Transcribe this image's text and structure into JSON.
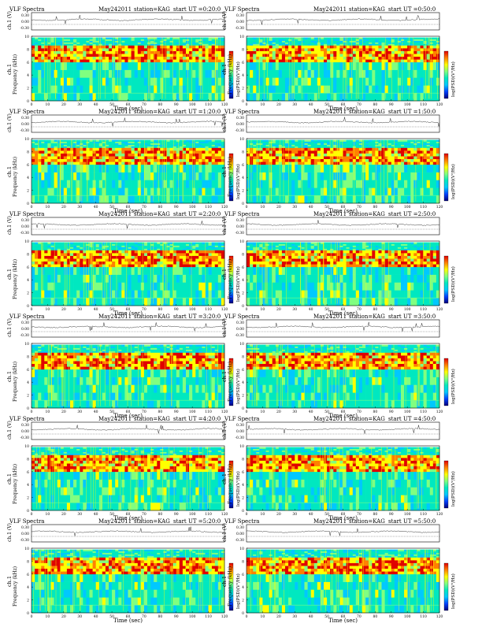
{
  "chart_data": {
    "type": "heatmap",
    "chart_kind": "VLF spectrogram grid (6 rows x 2 columns), each panel with a ch.1 waveform strip on top",
    "title_left": "VLF Spectra",
    "date": "May242011",
    "station": "station=KAG",
    "start_prefix": "start  UT =",
    "waveform_ylabel": "ch.1 (V)",
    "waveform_ticks": [
      "0.30",
      "0.00",
      "-0.30"
    ],
    "ylabel_left": "ch.1",
    "ylabel": "Frequency  (kHz)",
    "ylim_khz": [
      0,
      10
    ],
    "yticks": [
      "0",
      "2",
      "4",
      "6",
      "8",
      "10"
    ],
    "xlabel": "Time  (sec)",
    "xlim_sec": [
      0,
      120
    ],
    "xticks": [
      "0",
      "10",
      "20",
      "30",
      "40",
      "50",
      "60",
      "70",
      "80",
      "90",
      "100",
      "110",
      "120"
    ],
    "colorbar_label": "log(PSD)(V²/Hz)",
    "colormap": [
      "#00007a",
      "#0040ff",
      "#00c8ff",
      "#00e8c0",
      "#80ff80",
      "#ffff00",
      "#ff8000",
      "#e00000"
    ],
    "panels": [
      {
        "start": "0:20:0",
        "col": 0
      },
      {
        "start": "0:50:0",
        "col": 1
      },
      {
        "start": "1:20:0",
        "col": 0
      },
      {
        "start": "1:50:0",
        "col": 1
      },
      {
        "start": "2:20:0",
        "col": 0
      },
      {
        "start": "2:50:0",
        "col": 1
      },
      {
        "start": "3:20:0",
        "col": 0
      },
      {
        "start": "3:50:0",
        "col": 1
      },
      {
        "start": "4:20:0",
        "col": 0
      },
      {
        "start": "4:50:0",
        "col": 1
      },
      {
        "start": "5:20:0",
        "col": 0
      },
      {
        "start": "5:50:0",
        "col": 1
      }
    ]
  }
}
